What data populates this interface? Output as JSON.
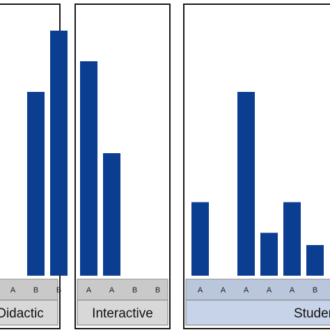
{
  "chart_data": [
    {
      "type": "bar",
      "panel": "Didactic",
      "categories": [
        "A",
        "B",
        "B"
      ],
      "values": [
        0,
        60,
        80
      ],
      "ylim": [
        0,
        85
      ]
    },
    {
      "type": "bar",
      "panel": "Interactive",
      "categories": [
        "A",
        "A",
        "B",
        "B"
      ],
      "values": [
        70,
        40,
        0,
        0
      ],
      "ylim": [
        0,
        85
      ]
    },
    {
      "type": "bar",
      "panel": "Student-Centered",
      "categories": [
        "A",
        "A",
        "A",
        "A",
        "A",
        "B"
      ],
      "values": [
        24,
        0,
        60,
        14,
        24,
        10
      ],
      "ylim": [
        0,
        85
      ]
    }
  ],
  "colors": {
    "bar": "#0b3d91",
    "strip_grey": "#c9c9c9",
    "strip_blue": "#b9c6dc"
  }
}
